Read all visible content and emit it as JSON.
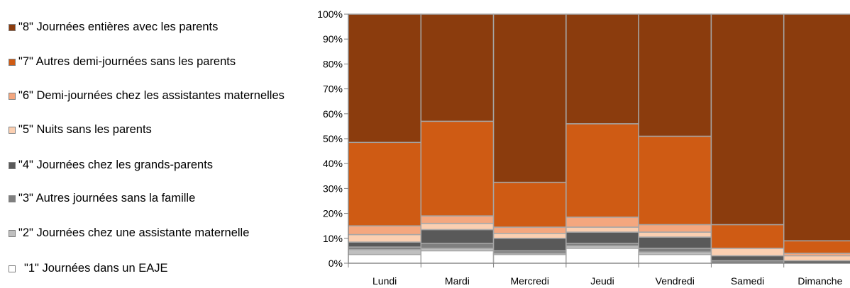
{
  "chart_data": {
    "type": "bar",
    "stacked": true,
    "categories": [
      "Lundi",
      "Mardi",
      "Mercredi",
      "Jeudi",
      "Vendredi",
      "Samedi",
      "Dimanche"
    ],
    "ylim": [
      0,
      100
    ],
    "yticks": [
      "0%",
      "10%",
      "20%",
      "30%",
      "40%",
      "50%",
      "60%",
      "70%",
      "80%",
      "90%",
      "100%"
    ],
    "legend_position": "left",
    "grid": false,
    "series": [
      {
        "name": "\"1\" Journées dans un EAJE",
        "color": "#ffffff",
        "values": [
          3.5,
          5,
          3.5,
          6,
          3.5,
          0,
          0
        ]
      },
      {
        "name": "\"2\" Journées chez une assistante maternelle",
        "color": "#bfbfbf",
        "values": [
          2,
          1,
          0.5,
          1,
          1,
          0,
          0
        ]
      },
      {
        "name": "\"3\" Autres journées sans la famille",
        "color": "#7f7f7f",
        "values": [
          1,
          2,
          1,
          1,
          1.5,
          1,
          0
        ]
      },
      {
        "name": "\"4\" Journées chez les grands-parents",
        "color": "#595959",
        "values": [
          2,
          5.5,
          5,
          4.5,
          4.5,
          2,
          1
        ]
      },
      {
        "name": "\"5\" Nuits sans les parents",
        "color": "#fbcfb1",
        "values": [
          3,
          2.5,
          2,
          2,
          2,
          3,
          2
        ]
      },
      {
        "name": "\"6\" Demi-journées chez les assistantes maternelles",
        "color": "#f4a77f",
        "values": [
          3.5,
          3,
          2.5,
          4,
          3,
          0,
          1
        ]
      },
      {
        "name": "\"7\" Autres demi-journées sans les parents",
        "color": "#cf5b14",
        "values": [
          33.5,
          38,
          18,
          37.5,
          35.5,
          9.5,
          5
        ]
      },
      {
        "name": "\"8\" Journées entières avec les parents",
        "color": "#8b3c0d",
        "values": [
          51.5,
          43,
          67.5,
          44,
          49,
          84.5,
          91
        ]
      }
    ]
  }
}
